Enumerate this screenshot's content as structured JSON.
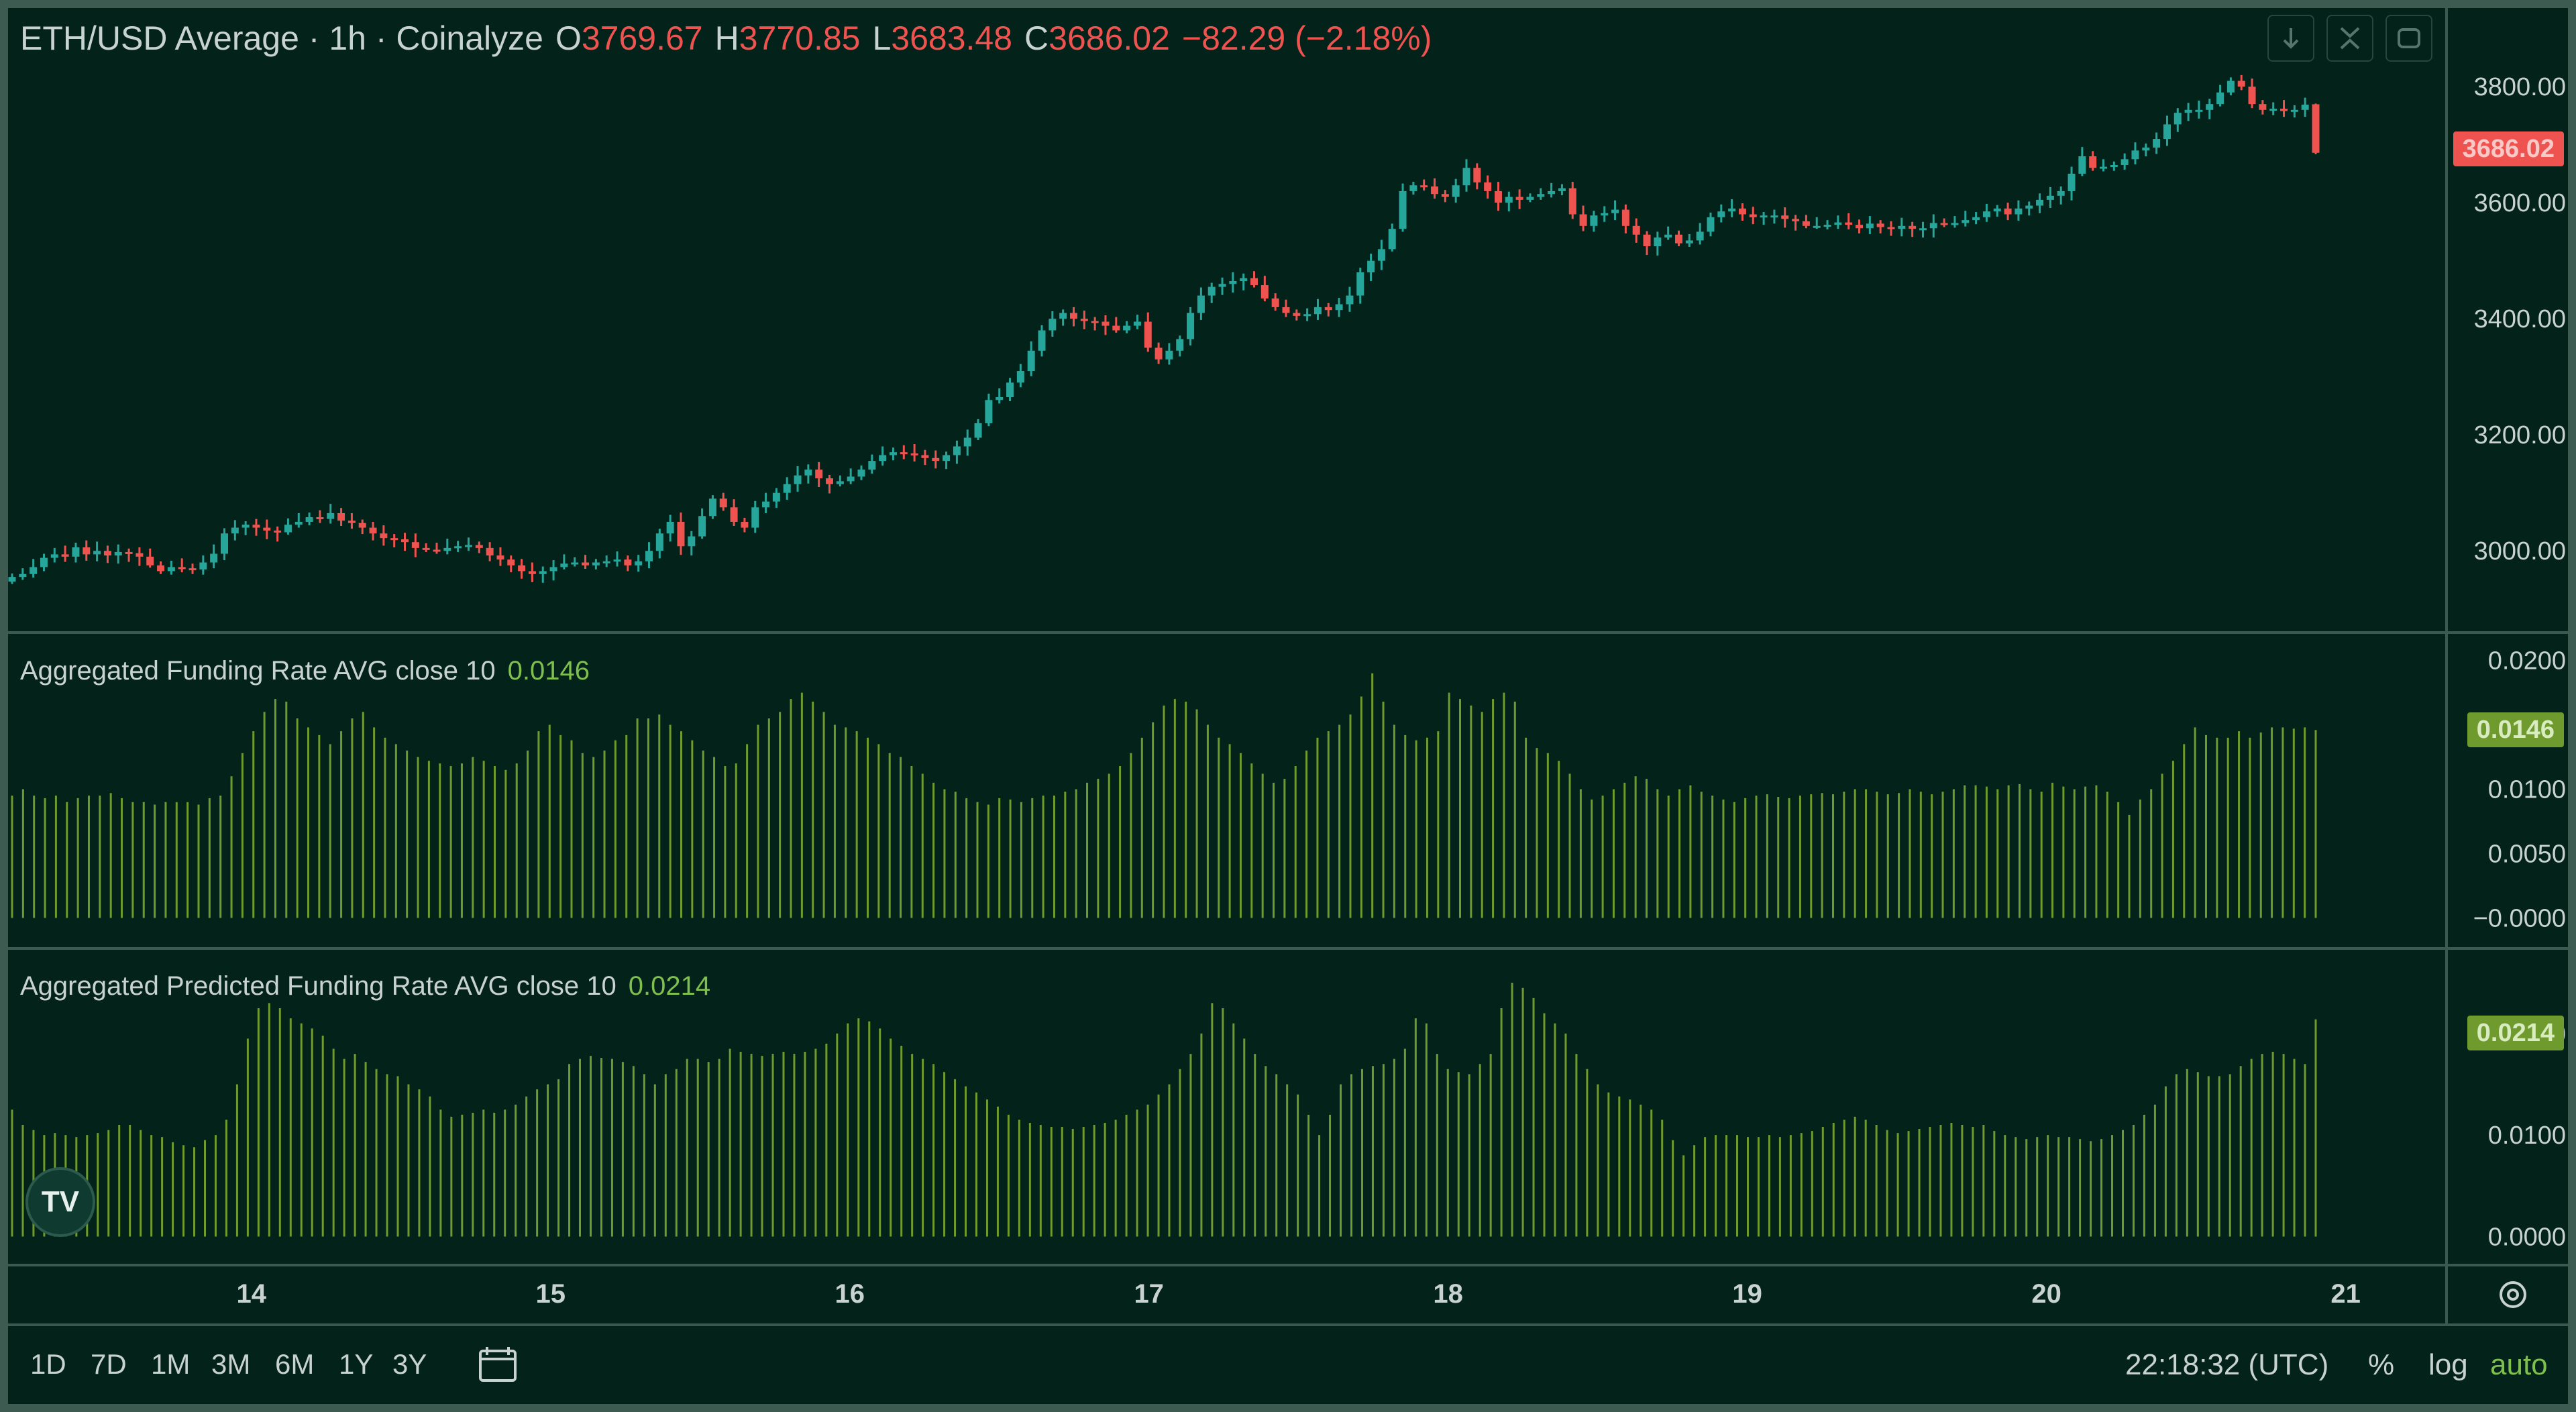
{
  "header": {
    "symbol": "ETH/USD Average · 1h · Coinalyze",
    "open_label": "O",
    "open": "3769.67",
    "high_label": "H",
    "high": "3770.85",
    "low_label": "L",
    "low": "3683.48",
    "close_label": "C",
    "close": "3686.02",
    "change": "−82.29 (−2.18%)"
  },
  "toolbar": {
    "icons": [
      "download-icon",
      "collapse-icon",
      "refresh-icon"
    ]
  },
  "time_axis": {
    "labels": [
      "14",
      "15",
      "16",
      "17",
      "18",
      "19",
      "20",
      "21"
    ]
  },
  "ranges": [
    "1D",
    "7D",
    "1M",
    "3M",
    "6M",
    "1Y",
    "3Y"
  ],
  "footer": {
    "clock": "22:18:32 (UTC)",
    "percent": "%",
    "log": "log",
    "auto": "auto"
  },
  "colors": {
    "up": "#26a69a",
    "down": "#ef5350",
    "funding": "#6f9b2e",
    "background": "#02221a"
  },
  "chart_data": [
    {
      "type": "candlestick",
      "title": "ETH/USD Average · 1h · Coinalyze",
      "y_ticks": [
        "3000.00",
        "3200.00",
        "3400.00",
        "3600.00",
        "3800.00"
      ],
      "ylim": [
        2880,
        3880
      ],
      "last_price_label": "3686.02",
      "x_unit": "days (Jul 14 00:00 = 14)",
      "closes": [
        2955,
        2960,
        2972,
        2988,
        2994,
        2990,
        3006,
        2994,
        3000,
        2992,
        2998,
        2996,
        2990,
        2975,
        2965,
        2972,
        2970,
        2968,
        2980,
        2995,
        3030,
        3040,
        3045,
        3040,
        3035,
        3032,
        3045,
        3050,
        3058,
        3055,
        3065,
        3052,
        3048,
        3040,
        3030,
        3022,
        3020,
        3015,
        3005,
        3002,
        3000,
        3005,
        3008,
        3010,
        3005,
        2992,
        2985,
        2975,
        2965,
        2960,
        2965,
        2972,
        2978,
        2980,
        2975,
        2980,
        2982,
        2985,
        2975,
        2982,
        3000,
        3030,
        3050,
        3008,
        3025,
        3060,
        3090,
        3075,
        3050,
        3040,
        3075,
        3085,
        3100,
        3115,
        3130,
        3140,
        3125,
        3115,
        3120,
        3128,
        3140,
        3155,
        3165,
        3170,
        3168,
        3165,
        3160,
        3155,
        3165,
        3180,
        3195,
        3220,
        3260,
        3265,
        3290,
        3310,
        3345,
        3380,
        3400,
        3410,
        3400,
        3396,
        3395,
        3388,
        3380,
        3388,
        3395,
        3350,
        3330,
        3345,
        3365,
        3410,
        3440,
        3455,
        3460,
        3465,
        3470,
        3458,
        3435,
        3420,
        3410,
        3405,
        3408,
        3420,
        3415,
        3425,
        3440,
        3480,
        3500,
        3520,
        3555,
        3620,
        3630,
        3628,
        3615,
        3610,
        3630,
        3660,
        3635,
        3620,
        3600,
        3610,
        3605,
        3610,
        3615,
        3620,
        3625,
        3580,
        3560,
        3578,
        3582,
        3588,
        3560,
        3545,
        3525,
        3540,
        3545,
        3530,
        3535,
        3550,
        3575,
        3585,
        3590,
        3580,
        3575,
        3578,
        3578,
        3572,
        3568,
        3560,
        3560,
        3562,
        3566,
        3562,
        3556,
        3564,
        3558,
        3555,
        3560,
        3555,
        3556,
        3565,
        3562,
        3565,
        3570,
        3575,
        3585,
        3590,
        3580,
        3590,
        3595,
        3605,
        3612,
        3620,
        3650,
        3680,
        3660,
        3662,
        3665,
        3675,
        3690,
        3695,
        3710,
        3735,
        3755,
        3760,
        3760,
        3770,
        3790,
        3810,
        3800,
        3770,
        3760,
        3762,
        3758,
        3760,
        3769,
        3686
      ],
      "last_candle": {
        "open": 3769.67,
        "high": 3770.85,
        "low": 3683.48,
        "close": 3686.02
      }
    },
    {
      "type": "bar",
      "title": "Aggregated Funding Rate AVG close 10",
      "current_value": "0.0146",
      "y_ticks": [
        "−0.0000",
        "0.0050",
        "0.0100",
        "0.0200"
      ],
      "ylim": [
        -0.0005,
        0.0205
      ],
      "values": [
        0.0095,
        0.01,
        0.0095,
        0.0093,
        0.0095,
        0.009,
        0.0093,
        0.0095,
        0.0095,
        0.0097,
        0.0093,
        0.009,
        0.009,
        0.0088,
        0.009,
        0.009,
        0.009,
        0.0088,
        0.0093,
        0.0095,
        0.011,
        0.0128,
        0.0145,
        0.016,
        0.017,
        0.0168,
        0.0155,
        0.0148,
        0.0142,
        0.0135,
        0.0145,
        0.0155,
        0.016,
        0.0148,
        0.014,
        0.0135,
        0.013,
        0.0125,
        0.0122,
        0.012,
        0.0118,
        0.012,
        0.0125,
        0.0122,
        0.0118,
        0.0115,
        0.012,
        0.013,
        0.0145,
        0.015,
        0.0142,
        0.0138,
        0.0128,
        0.0125,
        0.013,
        0.0138,
        0.0142,
        0.0155,
        0.0155,
        0.0158,
        0.015,
        0.0145,
        0.0138,
        0.013,
        0.0125,
        0.0118,
        0.012,
        0.0135,
        0.015,
        0.0155,
        0.016,
        0.017,
        0.0175,
        0.0168,
        0.016,
        0.015,
        0.0148,
        0.0145,
        0.014,
        0.0135,
        0.0128,
        0.0125,
        0.0118,
        0.0112,
        0.0105,
        0.01,
        0.0098,
        0.0093,
        0.009,
        0.0088,
        0.0093,
        0.0092,
        0.009,
        0.0093,
        0.0095,
        0.0095,
        0.0098,
        0.01,
        0.0105,
        0.0108,
        0.0112,
        0.0118,
        0.0128,
        0.014,
        0.0152,
        0.0165,
        0.017,
        0.0168,
        0.0162,
        0.015,
        0.014,
        0.0135,
        0.0128,
        0.012,
        0.0112,
        0.0105,
        0.0108,
        0.0118,
        0.013,
        0.014,
        0.0145,
        0.015,
        0.0158,
        0.0172,
        0.019,
        0.0168,
        0.015,
        0.0142,
        0.0138,
        0.014,
        0.0145,
        0.0175,
        0.017,
        0.0165,
        0.016,
        0.017,
        0.0175,
        0.0168,
        0.014,
        0.0132,
        0.0128,
        0.0122,
        0.0112,
        0.01,
        0.0092,
        0.0095,
        0.01,
        0.0105,
        0.011,
        0.0108,
        0.01,
        0.0095,
        0.01,
        0.0103,
        0.0098,
        0.0095,
        0.0092,
        0.009,
        0.0093,
        0.0095,
        0.0096,
        0.0094,
        0.0093,
        0.0095,
        0.0096,
        0.0097,
        0.0096,
        0.0098,
        0.01,
        0.01,
        0.0098,
        0.0096,
        0.0097,
        0.01,
        0.0098,
        0.0096,
        0.0098,
        0.01,
        0.0103,
        0.0103,
        0.0102,
        0.01,
        0.0103,
        0.0104,
        0.01,
        0.0098,
        0.0105,
        0.0102,
        0.01,
        0.0102,
        0.0103,
        0.0098,
        0.009,
        0.008,
        0.0092,
        0.01,
        0.0112,
        0.0122,
        0.0135,
        0.0148,
        0.0142,
        0.014,
        0.014,
        0.0145,
        0.014,
        0.0144,
        0.0148,
        0.0148,
        0.0147,
        0.0148,
        0.0146
      ]
    },
    {
      "type": "bar",
      "title": "Aggregated Predicted Funding Rate AVG close 10",
      "current_value": "0.0214",
      "y_ticks": [
        "0.0000",
        "0.0100",
        "0.0200"
      ],
      "ylim": [
        -0.0003,
        0.026
      ],
      "values": [
        0.0125,
        0.011,
        0.0105,
        0.01,
        0.0102,
        0.01,
        0.0098,
        0.01,
        0.0102,
        0.0105,
        0.011,
        0.011,
        0.0105,
        0.01,
        0.0098,
        0.0093,
        0.009,
        0.0088,
        0.0095,
        0.01,
        0.0115,
        0.015,
        0.0195,
        0.0225,
        0.023,
        0.0225,
        0.0215,
        0.021,
        0.0205,
        0.0198,
        0.0185,
        0.0175,
        0.018,
        0.0172,
        0.0165,
        0.016,
        0.0158,
        0.015,
        0.0145,
        0.0138,
        0.0125,
        0.0118,
        0.012,
        0.0122,
        0.0125,
        0.0122,
        0.0125,
        0.013,
        0.0138,
        0.0145,
        0.015,
        0.0155,
        0.017,
        0.0175,
        0.0178,
        0.0176,
        0.0175,
        0.0172,
        0.0168,
        0.016,
        0.015,
        0.016,
        0.0165,
        0.0175,
        0.0175,
        0.0172,
        0.0175,
        0.0185,
        0.0182,
        0.018,
        0.0178,
        0.018,
        0.0182,
        0.018,
        0.0182,
        0.0185,
        0.019,
        0.02,
        0.021,
        0.0215,
        0.0212,
        0.0205,
        0.0195,
        0.0188,
        0.018,
        0.0175,
        0.017,
        0.0162,
        0.0155,
        0.0148,
        0.0142,
        0.0135,
        0.0128,
        0.012,
        0.0115,
        0.0112,
        0.011,
        0.0108,
        0.0108,
        0.0106,
        0.0108,
        0.011,
        0.0112,
        0.0115,
        0.012,
        0.0125,
        0.013,
        0.014,
        0.015,
        0.0165,
        0.018,
        0.02,
        0.023,
        0.0225,
        0.021,
        0.0195,
        0.018,
        0.0168,
        0.016,
        0.015,
        0.014,
        0.012,
        0.01,
        0.012,
        0.015,
        0.016,
        0.0165,
        0.0168,
        0.017,
        0.0175,
        0.0185,
        0.0215,
        0.021,
        0.018,
        0.0165,
        0.0162,
        0.016,
        0.017,
        0.018,
        0.0225,
        0.025,
        0.0245,
        0.0235,
        0.022,
        0.021,
        0.02,
        0.018,
        0.0165,
        0.015,
        0.0142,
        0.0138,
        0.0135,
        0.013,
        0.0125,
        0.0115,
        0.0095,
        0.008,
        0.009,
        0.0098,
        0.01,
        0.01,
        0.01,
        0.0098,
        0.0098,
        0.01,
        0.0098,
        0.01,
        0.0102,
        0.0104,
        0.0108,
        0.0112,
        0.0115,
        0.0118,
        0.0115,
        0.011,
        0.0105,
        0.0102,
        0.0104,
        0.0106,
        0.0108,
        0.011,
        0.0112,
        0.011,
        0.0108,
        0.011,
        0.0104,
        0.01,
        0.0098,
        0.0096,
        0.0098,
        0.01,
        0.0098,
        0.0098,
        0.0096,
        0.0094,
        0.0096,
        0.01,
        0.0105,
        0.011,
        0.012,
        0.013,
        0.0148,
        0.016,
        0.0165,
        0.0162,
        0.0158,
        0.0158,
        0.016,
        0.0168,
        0.0175,
        0.018,
        0.0182,
        0.018,
        0.0175,
        0.017,
        0.0214
      ]
    }
  ]
}
